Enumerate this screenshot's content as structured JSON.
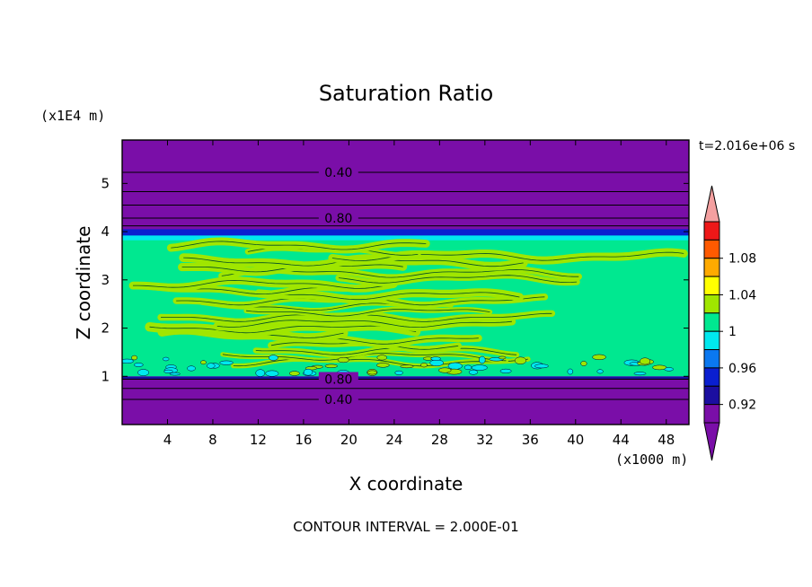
{
  "chart_data": {
    "type": "heatmap",
    "title": "Saturation Ratio",
    "time_label": "t=2.016e+06 s",
    "xlabel": "X coordinate",
    "ylabel": "Z coordinate",
    "x_unit": "(x1000 m)",
    "y_unit": "(x1E4 m)",
    "xlim": [
      0,
      50
    ],
    "ylim": [
      0,
      5.9
    ],
    "x_ticks": [
      "4",
      "8",
      "12",
      "16",
      "20",
      "24",
      "28",
      "32",
      "36",
      "40",
      "44",
      "48"
    ],
    "x_tick_values": [
      4,
      8,
      12,
      16,
      20,
      24,
      28,
      32,
      36,
      40,
      44,
      48
    ],
    "y_ticks": [
      "1",
      "2",
      "3",
      "4",
      "5"
    ],
    "y_tick_values": [
      1,
      2,
      3,
      4,
      5
    ],
    "contour_labels": [
      {
        "text": "0.40",
        "x": 17.5,
        "y": 5.23
      },
      {
        "text": "0.80",
        "x": 17.5,
        "y": 4.28
      },
      {
        "text": "0.80",
        "x": 17.5,
        "y": 0.94
      },
      {
        "text": "0.40",
        "x": 17.5,
        "y": 0.52
      }
    ],
    "contour_lines_y": [
      5.23,
      4.83,
      4.55,
      4.28,
      4.12,
      0.94,
      0.75,
      0.52
    ],
    "bands": [
      {
        "y0": 4.0,
        "y1": 5.9,
        "level": "below"
      },
      {
        "y0": 3.9,
        "y1": 4.05,
        "level": "0.94"
      },
      {
        "y0": 3.78,
        "y1": 3.92,
        "level": "0.98"
      },
      {
        "y0": 1.0,
        "y1": 3.82,
        "level": "1"
      },
      {
        "y0": 0.93,
        "y1": 1.0,
        "level": "0.92"
      },
      {
        "y0": 0.0,
        "y1": 0.95,
        "level": "below"
      }
    ],
    "colorbar": {
      "levels": [
        "0.92",
        "0.94",
        "0.96",
        "0.98",
        "1",
        "1.02",
        "1.04",
        "1.06",
        "1.08",
        "1.1"
      ],
      "labels": [
        "0.92",
        "0.96",
        "1",
        "1.04",
        "1.08"
      ],
      "colors": {
        "below": "#7a0ea8",
        "0.92": "#1b0ea0",
        "0.94": "#0a1fd0",
        "0.96": "#0a78f0",
        "0.98": "#00e8ee",
        "1": "#00e890",
        "1.02": "#a0e600",
        "1.04": "#ffff00",
        "1.06": "#ffaa00",
        "1.08": "#ff5a00",
        "1.1": "#ee1818",
        "above": "#f4a0a0"
      }
    },
    "footer": "CONTOUR INTERVAL = 2.000E-01"
  }
}
